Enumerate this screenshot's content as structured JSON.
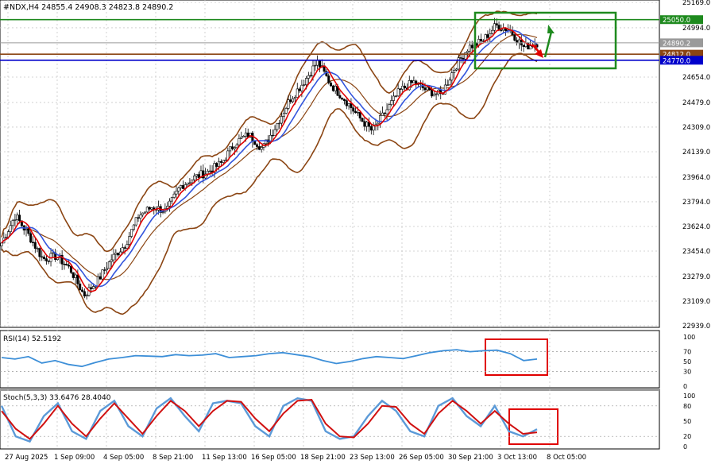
{
  "header": {
    "symbol_line": "#NDX,H4  24855.4 24908.3 24823.8 24890.2",
    "rsi_label": "RSI(14) 52.5192",
    "stoch_label": "Stoch(5,3,3) 33.6476 28.4040"
  },
  "colors": {
    "background": "#ffffff",
    "grid": "#c8c8c8",
    "candle": "#000000",
    "bollinger": "#8b4513",
    "ma_fast": "#e00000",
    "ma_slow": "#3355dd",
    "rsi_line": "#3d8fd8",
    "stoch_main": "#5b9ad8",
    "stoch_signal": "#d01010",
    "level_green": "#1e8a1e",
    "level_brown": "#8b4513",
    "level_blue": "#0000cc",
    "level_gray": "#9a9a9a",
    "box_green": "#1e8a1e",
    "box_red": "#e00000",
    "arrow_up": "#1e8a1e",
    "arrow_down": "#e00000"
  },
  "chart_data": [
    {
      "type": "candlestick",
      "title": "#NDX,H4",
      "ohlc_last": {
        "open": 24855.4,
        "high": 24908.3,
        "low": 24823.8,
        "close": 24890.2
      },
      "y_ticks": [
        25169.0,
        24994.0,
        24654.0,
        24479.0,
        24309.0,
        24139.0,
        23964.0,
        23794.0,
        23624.0,
        23454.0,
        23279.0,
        23109.0,
        22939.0
      ],
      "ylim": [
        22939.0,
        25169.0
      ],
      "x_ticks": [
        "27 Aug 2025",
        "1 Sep 09:00",
        "4 Sep 05:00",
        "8 Sep 21:00",
        "11 Sep 13:00",
        "16 Sep 05:00",
        "18 Sep 21:00",
        "23 Sep 13:00",
        "26 Sep 05:00",
        "30 Sep 21:00",
        "3 Oct 13:00",
        "8 Oct 05:00"
      ],
      "levels": [
        {
          "label": "25050.0",
          "value": 25050.0,
          "color": "#1e8a1e"
        },
        {
          "label": "24890.2",
          "value": 24890.2,
          "color": "#9a9a9a"
        },
        {
          "label": "24812.0",
          "value": 24812.0,
          "color": "#8b4513"
        },
        {
          "label": "24770.0",
          "value": 24770.0,
          "color": "#0000cc"
        }
      ],
      "close_path": [
        23510,
        23700,
        23560,
        23400,
        23420,
        23330,
        23150,
        23250,
        23400,
        23500,
        23700,
        23760,
        23730,
        23900,
        23960,
        24000,
        24060,
        24200,
        24260,
        24160,
        24320,
        24500,
        24620,
        24760,
        24600,
        24500,
        24380,
        24280,
        24420,
        24560,
        24620,
        24560,
        24530,
        24720,
        24860,
        24900,
        25010,
        24980,
        24860,
        24890
      ]
    },
    {
      "type": "line",
      "title": "RSI(14) 52.5192",
      "ylim": [
        0,
        100
      ],
      "y_ticks": [
        100,
        70,
        50,
        30,
        0
      ],
      "last_value": 52.5192,
      "values": [
        58,
        55,
        60,
        47,
        52,
        44,
        40,
        48,
        55,
        58,
        62,
        61,
        60,
        64,
        62,
        63,
        66,
        58,
        60,
        62,
        66,
        68,
        64,
        60,
        52,
        46,
        50,
        56,
        60,
        58,
        56,
        62,
        68,
        72,
        74,
        70,
        72,
        73,
        66,
        52,
        55
      ]
    },
    {
      "type": "line",
      "title": "Stoch(5,3,3) 33.6476 28.4040",
      "ylim": [
        0,
        100
      ],
      "y_ticks": [
        100,
        80,
        50,
        20,
        0
      ],
      "series": [
        {
          "role": "main",
          "last_value": 33.6476,
          "values": [
            80,
            20,
            10,
            60,
            85,
            30,
            15,
            70,
            90,
            40,
            20,
            75,
            95,
            60,
            30,
            85,
            90,
            85,
            40,
            20,
            80,
            95,
            90,
            30,
            15,
            20,
            60,
            90,
            70,
            30,
            20,
            80,
            95,
            60,
            40,
            80,
            30,
            20,
            34
          ]
        },
        {
          "role": "signal",
          "last_value": 28.404,
          "values": [
            70,
            35,
            15,
            45,
            80,
            45,
            20,
            55,
            85,
            55,
            25,
            60,
            90,
            70,
            40,
            70,
            90,
            88,
            55,
            30,
            65,
            90,
            92,
            45,
            20,
            18,
            45,
            80,
            78,
            45,
            25,
            65,
            90,
            70,
            45,
            70,
            45,
            25,
            28
          ]
        }
      ]
    }
  ]
}
